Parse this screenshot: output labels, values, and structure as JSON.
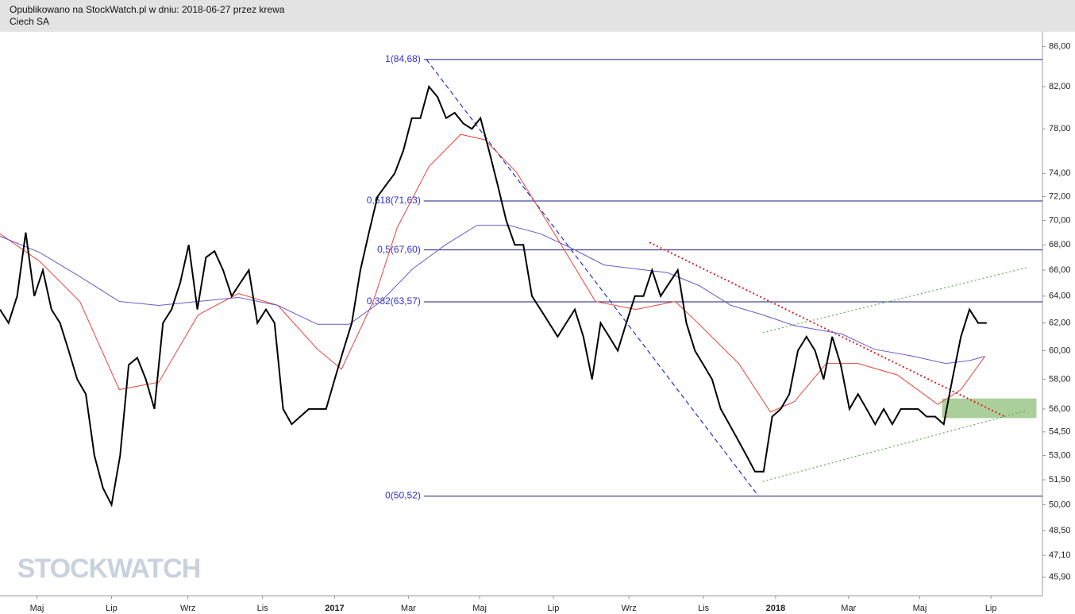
{
  "header": {
    "line1": "Opublikowano na StockWatch.pl w dniu: 2018-06-27 przez krewa",
    "line2": "Ciech SA"
  },
  "chart_data": {
    "type": "line",
    "log_scale": true,
    "watermark": "STOCKWATCH",
    "xlim": [
      0,
      121.5
    ],
    "ylim": [
      44.9,
      87.5
    ],
    "xticks": [
      {
        "value": 4.3,
        "label": "Maj"
      },
      {
        "value": 13.0,
        "label": "Lip"
      },
      {
        "value": 21.9,
        "label": "Wrz"
      },
      {
        "value": 30.6,
        "label": "Lis"
      },
      {
        "value": 39.0,
        "label": "2017"
      },
      {
        "value": 47.6,
        "label": "Mar"
      },
      {
        "value": 55.9,
        "label": "Maj"
      },
      {
        "value": 64.5,
        "label": "Lip"
      },
      {
        "value": 73.3,
        "label": "Wrz"
      },
      {
        "value": 82.0,
        "label": "Lis"
      },
      {
        "value": 90.4,
        "label": "2018"
      },
      {
        "value": 98.9,
        "label": "Mar"
      },
      {
        "value": 107.2,
        "label": "Maj"
      },
      {
        "value": 115.5,
        "label": "Lip"
      }
    ],
    "yticks": [
      {
        "value": 86,
        "label": "86,00"
      },
      {
        "value": 82,
        "label": "82,00"
      },
      {
        "value": 78,
        "label": "78,00"
      },
      {
        "value": 74,
        "label": "74,00"
      },
      {
        "value": 72,
        "label": "72,00"
      },
      {
        "value": 70,
        "label": "70,00"
      },
      {
        "value": 68,
        "label": "68,00"
      },
      {
        "value": 66,
        "label": "66,00"
      },
      {
        "value": 64,
        "label": "64,00"
      },
      {
        "value": 62,
        "label": "62,00"
      },
      {
        "value": 60,
        "label": "60,00"
      },
      {
        "value": 58,
        "label": "58,00"
      },
      {
        "value": 56,
        "label": "56,00"
      },
      {
        "value": 54.5,
        "label": "54,50"
      },
      {
        "value": 53,
        "label": "53,00"
      },
      {
        "value": 51.5,
        "label": "51,50"
      },
      {
        "value": 50,
        "label": "50,00"
      },
      {
        "value": 48.5,
        "label": "48,50"
      },
      {
        "value": 47.1,
        "label": "47,10"
      },
      {
        "value": 45.9,
        "label": "45,90"
      }
    ],
    "series": [
      {
        "color": "#000000",
        "width": 2,
        "x": [
          0,
          1,
          2,
          3,
          4,
          5,
          6,
          7,
          8,
          9,
          10,
          11,
          12,
          13,
          14,
          15,
          16,
          17,
          18,
          19,
          20,
          21,
          22,
          23,
          24,
          25,
          26,
          27,
          28,
          29,
          30,
          31,
          32,
          33,
          34,
          35,
          36,
          37,
          38,
          39,
          40,
          41,
          42,
          43,
          44,
          45,
          46,
          47,
          48,
          49,
          50,
          51,
          52,
          53,
          54,
          55,
          56,
          57,
          58,
          59,
          60,
          61,
          62,
          63,
          64,
          65,
          66,
          67,
          68,
          69,
          70,
          71,
          72,
          73,
          74,
          75,
          76,
          77,
          78,
          79,
          80,
          81,
          82,
          83,
          84,
          85,
          86,
          87,
          88,
          89,
          90,
          91,
          92,
          93,
          94,
          95,
          96,
          97,
          98,
          99,
          100,
          101,
          102,
          103,
          104,
          105,
          106,
          107,
          108,
          109,
          110,
          111,
          112,
          113,
          114,
          115
        ],
        "values": [
          63,
          62,
          64,
          69,
          64,
          66,
          63,
          62,
          60,
          58,
          57,
          53,
          51,
          50,
          53,
          59,
          59.5,
          58,
          56,
          62,
          63,
          65,
          68,
          63,
          67,
          67.5,
          66,
          64,
          65,
          66,
          62,
          63,
          62,
          56,
          55,
          55.5,
          56,
          56,
          56,
          58,
          60,
          62,
          66,
          69,
          72,
          73,
          74,
          76,
          79,
          79,
          82,
          81,
          79,
          79.5,
          78.5,
          78,
          79,
          76,
          73,
          70,
          68,
          68,
          64,
          63,
          62,
          61,
          62,
          63,
          61,
          58,
          62,
          61,
          60,
          62,
          64,
          64,
          66,
          64,
          65,
          66,
          62,
          60,
          59,
          58,
          56,
          55,
          54,
          53,
          52,
          52,
          55.5,
          56,
          57,
          60,
          61,
          60,
          58,
          61,
          59,
          56,
          57,
          56,
          55,
          56,
          55,
          56,
          56,
          56,
          55.5,
          55.5,
          55,
          58,
          61,
          63,
          62,
          62
        ]
      },
      {
        "color": "#e8443a",
        "width": 1,
        "x": [
          0,
          4.6,
          9.3,
          13.9,
          18.5,
          23.1,
          27.8,
          32.4,
          37.0,
          39.8,
          43.5,
          46.3,
          50.0,
          53.7,
          56.5,
          60.2,
          64.8,
          69.4,
          74.1,
          78.7,
          81.5,
          86.1,
          89.8,
          92.6,
          96.3,
          100.0,
          104.6,
          109.3,
          112.0,
          114.8
        ],
        "values": [
          68.9,
          66.7,
          63.6,
          57.3,
          57.8,
          62.6,
          64.2,
          63.3,
          60.1,
          58.7,
          63.6,
          69.4,
          74.6,
          77.5,
          77.0,
          74.1,
          68.7,
          63.6,
          63.0,
          63.6,
          61.9,
          59.1,
          55.8,
          56.5,
          59.1,
          59.1,
          58.3,
          56.3,
          57.3,
          59.6
        ]
      },
      {
        "color": "#6a5acd",
        "width": 1,
        "x": [
          0,
          4.6,
          9.3,
          13.9,
          18.5,
          23.1,
          27.8,
          32.4,
          37.0,
          40.7,
          44.4,
          48.1,
          51.9,
          55.6,
          59.3,
          63.0,
          66.7,
          70.4,
          74.1,
          77.8,
          81.5,
          85.2,
          88.9,
          92.6,
          98.1,
          101.9,
          106.5,
          110.2,
          113.0,
          114.8
        ],
        "values": [
          68.7,
          67.4,
          65.5,
          63.6,
          63.3,
          63.6,
          63.9,
          63.3,
          61.9,
          61.9,
          63.6,
          66.1,
          68.0,
          69.6,
          69.6,
          68.9,
          67.7,
          66.4,
          66.1,
          65.8,
          64.8,
          63.3,
          62.6,
          61.8,
          61.2,
          60.1,
          59.6,
          59.1,
          59.3,
          59.6
        ]
      }
    ],
    "fib_levels": [
      {
        "value": 84.68,
        "label": "1(84,68)"
      },
      {
        "value": 71.63,
        "label": "0,618(71,63)"
      },
      {
        "value": 67.6,
        "label": "0,5(67,60)"
      },
      {
        "value": 63.57,
        "label": "0,382(63,57)"
      },
      {
        "value": 50.52,
        "label": "0(50,52)"
      }
    ],
    "fib_start": 49.4,
    "trendlines": [
      {
        "color": "#2233cc",
        "dash": "6,4",
        "x": [
          49.7,
          88.4
        ],
        "y": [
          84.68,
          50.52
        ]
      },
      {
        "color": "#dd2222",
        "dash": "2,3",
        "x": [
          75.7,
          117.1
        ],
        "y": [
          68.2,
          55.5
        ]
      },
      {
        "color": "#66aa55",
        "dash": "2,3",
        "x": [
          88.9,
          119.7
        ],
        "y": [
          61.3,
          66.2
        ]
      },
      {
        "color": "#66aa55",
        "dash": "2,3",
        "x": [
          88.9,
          119.7
        ],
        "y": [
          51.4,
          55.9
        ]
      }
    ],
    "zone": {
      "color": "#8fbf7a",
      "x": [
        109.8,
        120.8
      ],
      "y": [
        55.4,
        56.7
      ]
    }
  }
}
